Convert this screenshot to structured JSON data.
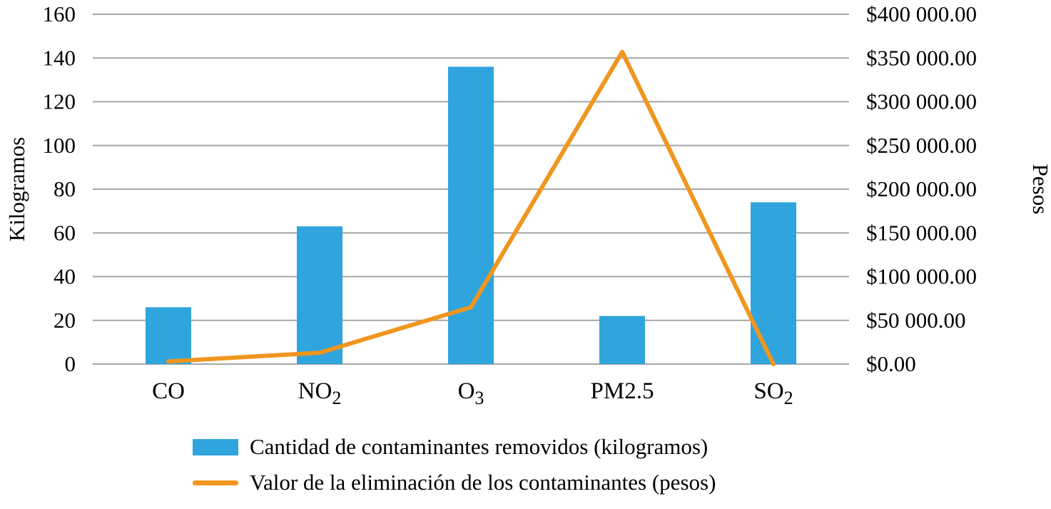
{
  "chart_data": {
    "type": "bar",
    "subtype": "combo-bar-line-dual-axis",
    "categories": [
      {
        "base": "CO",
        "sub": ""
      },
      {
        "base": "NO",
        "sub": "2"
      },
      {
        "base": "O",
        "sub": "3"
      },
      {
        "base": "PM2.5",
        "sub": ""
      },
      {
        "base": "SO",
        "sub": "2"
      }
    ],
    "series": [
      {
        "name": "Cantidad de contaminantes removidos (kilogramos)",
        "type": "bar",
        "axis": "left",
        "color": "#30A4DC",
        "values": [
          26,
          63,
          136,
          22,
          74
        ]
      },
      {
        "name": "Valor de la eliminación de los contaminantes (pesos)",
        "type": "line",
        "axis": "right",
        "color": "#F0961E",
        "values": [
          3000,
          13000,
          65000,
          357000,
          0
        ]
      }
    ],
    "left_axis": {
      "label": "Kilogramos",
      "min": 0,
      "max": 160,
      "step": 20
    },
    "right_axis": {
      "label": "Pesos",
      "min": 0,
      "max": 400000,
      "step": 50000,
      "tick_prefix": "$",
      "tick_decimals": ".00",
      "thousands_separator": " "
    },
    "grid": true,
    "gridline_color": "#A6A6A6",
    "text_color": "#000000",
    "legend_position": "bottom"
  }
}
